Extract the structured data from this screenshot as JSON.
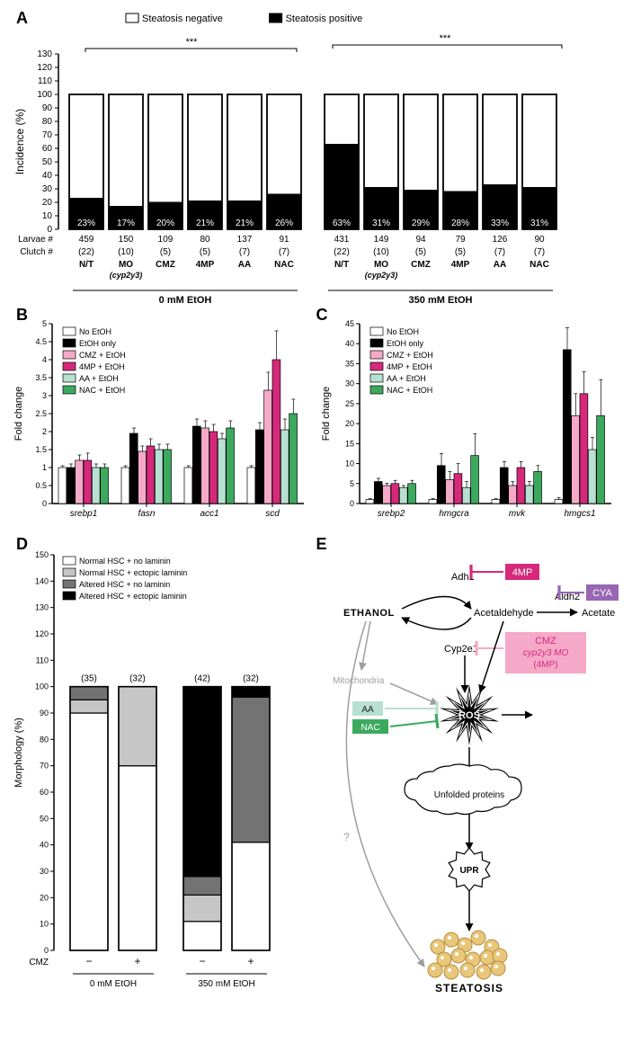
{
  "panelA": {
    "label": "A",
    "type": "stacked-bar",
    "ylabel": "Incidence (%)",
    "ylim": [
      0,
      130
    ],
    "ytick_step": 10,
    "legend": [
      {
        "label": "Steatosis negative",
        "fill": "#ffffff"
      },
      {
        "label": "Steatosis positive",
        "fill": "#000000"
      }
    ],
    "sig_label": "***",
    "groups": [
      {
        "header": "0 mM EtOH",
        "bars": [
          {
            "treatment": "N/T",
            "subtext": "",
            "larvae": "459",
            "clutch": "(22)",
            "pct": 23,
            "italic": false
          },
          {
            "treatment": "MO",
            "subtext": "(cyp2y3)",
            "larvae": "150",
            "clutch": "(10)",
            "pct": 17,
            "italic": true
          },
          {
            "treatment": "CMZ",
            "larvae": "109",
            "clutch": "(5)",
            "pct": 20
          },
          {
            "treatment": "4MP",
            "larvae": "80",
            "clutch": "(5)",
            "pct": 21
          },
          {
            "treatment": "AA",
            "larvae": "137",
            "clutch": "(7)",
            "pct": 21
          },
          {
            "treatment": "NAC",
            "larvae": "91",
            "clutch": "(7)",
            "pct": 26
          }
        ]
      },
      {
        "header": "350 mM EtOH",
        "bars": [
          {
            "treatment": "N/T",
            "larvae": "431",
            "clutch": "(22)",
            "pct": 63
          },
          {
            "treatment": "MO",
            "subtext": "(cyp2y3)",
            "larvae": "149",
            "clutch": "(10)",
            "pct": 31,
            "italic": true
          },
          {
            "treatment": "CMZ",
            "larvae": "94",
            "clutch": "(5)",
            "pct": 29
          },
          {
            "treatment": "4MP",
            "larvae": "79",
            "clutch": "(5)",
            "pct": 28
          },
          {
            "treatment": "AA",
            "larvae": "126",
            "clutch": "(7)",
            "pct": 33
          },
          {
            "treatment": "NAC",
            "larvae": "90",
            "clutch": "(7)",
            "pct": 31
          }
        ]
      }
    ],
    "row_labels": [
      "Larvae #",
      "Clutch #"
    ]
  },
  "panelB": {
    "label": "B",
    "type": "grouped-bar",
    "ylabel": "Fold change",
    "ylim": [
      0,
      5
    ],
    "yticks": [
      0,
      0.5,
      1.0,
      1.5,
      2.0,
      2.5,
      3.0,
      3.5,
      4.0,
      4.5,
      5.0
    ],
    "legend": [
      {
        "label": "No EtOH",
        "fill": "#ffffff"
      },
      {
        "label": "EtOH only",
        "fill": "#000000"
      },
      {
        "label": "CMZ + EtOH",
        "fill": "#f5a9c8"
      },
      {
        "label": "4MP + EtOH",
        "fill": "#d6297b"
      },
      {
        "label": "AA + EtOH",
        "fill": "#b8e0d2"
      },
      {
        "label": "NAC + EtOH",
        "fill": "#3caa5e"
      }
    ],
    "genes": [
      "srebp1",
      "fasn",
      "acc1",
      "scd"
    ],
    "series": {
      "No EtOH": [
        1.0,
        1.0,
        1.0,
        1.0
      ],
      "EtOH only": [
        1.0,
        1.95,
        2.15,
        2.05
      ],
      "CMZ + EtOH": [
        1.2,
        1.45,
        2.1,
        3.15
      ],
      "4MP + EtOH": [
        1.2,
        1.6,
        2.0,
        4.0
      ],
      "AA + EtOH": [
        1.0,
        1.5,
        1.8,
        2.05
      ],
      "NAC + EtOH": [
        1.0,
        1.5,
        2.1,
        2.5
      ]
    },
    "errors": {
      "No EtOH": [
        0.05,
        0.05,
        0.05,
        0.05
      ],
      "EtOH only": [
        0.1,
        0.15,
        0.2,
        0.2
      ],
      "CMZ + EtOH": [
        0.15,
        0.15,
        0.2,
        0.5
      ],
      "4MP + EtOH": [
        0.2,
        0.2,
        0.2,
        0.8
      ],
      "AA + EtOH": [
        0.1,
        0.15,
        0.15,
        0.3
      ],
      "NAC + EtOH": [
        0.1,
        0.15,
        0.2,
        0.4
      ]
    }
  },
  "panelC": {
    "label": "C",
    "type": "grouped-bar",
    "ylabel": "Fold change",
    "ylim": [
      0,
      45
    ],
    "yticks": [
      0,
      5,
      10,
      15,
      20,
      25,
      30,
      35,
      40,
      45
    ],
    "genes": [
      "srebp2",
      "hmgcra",
      "mvk",
      "hmgcs1"
    ],
    "series": {
      "No EtOH": [
        1.0,
        1.0,
        1.0,
        1.0
      ],
      "EtOH only": [
        5.5,
        9.5,
        9.0,
        38.5
      ],
      "CMZ + EtOH": [
        4.5,
        6.0,
        4.5,
        22.0
      ],
      "4MP + EtOH": [
        5.0,
        7.5,
        9.0,
        27.5
      ],
      "AA + EtOH": [
        4.0,
        4.0,
        4.5,
        13.5
      ],
      "NAC + EtOH": [
        5.0,
        12.0,
        8.0,
        22.0
      ]
    },
    "errors": {
      "No EtOH": [
        0.2,
        0.2,
        0.2,
        0.5
      ],
      "EtOH only": [
        0.8,
        3.0,
        1.5,
        5.5
      ],
      "CMZ + EtOH": [
        0.6,
        2.0,
        1.0,
        5.5
      ],
      "4MP + EtOH": [
        0.8,
        2.5,
        1.5,
        5.5
      ],
      "AA + EtOH": [
        0.5,
        1.5,
        1.0,
        3.0
      ],
      "NAC + EtOH": [
        0.8,
        5.5,
        1.5,
        9.0
      ]
    }
  },
  "panelD": {
    "label": "D",
    "type": "stacked-bar",
    "ylabel": "Morphology (%)",
    "ylim": [
      0,
      150
    ],
    "ytick_step": 10,
    "legend": [
      {
        "label": "Normal HSC + no laminin",
        "fill": "#ffffff"
      },
      {
        "label": "Normal HSC + ectopic laminin",
        "fill": "#c6c6c6"
      },
      {
        "label": "Altered HSC + no laminin",
        "fill": "#737373"
      },
      {
        "label": "Altered HSC + ectopic laminin",
        "fill": "#000000"
      }
    ],
    "xrow_label": "CMZ",
    "groups": [
      {
        "header": "0 mM EtOH",
        "bars": [
          {
            "cmz": "−",
            "n": "(35)",
            "stacks": [
              90,
              5,
              5,
              0
            ]
          },
          {
            "cmz": "+",
            "n": "(32)",
            "stacks": [
              70,
              30,
              0,
              0
            ]
          }
        ]
      },
      {
        "header": "350 mM EtOH",
        "bars": [
          {
            "cmz": "−",
            "n": "(42)",
            "stacks": [
              11,
              10,
              7,
              72
            ]
          },
          {
            "cmz": "+",
            "n": "(32)",
            "stacks": [
              41,
              0,
              55,
              4
            ]
          }
        ]
      }
    ]
  },
  "panelE": {
    "label": "E",
    "nodes": {
      "ethanol": "ETHANOL",
      "adh1": "Adh1",
      "acet": "Acetaldehyde",
      "aldh2": "Aldh2",
      "acetate": "Acetate",
      "cyp2e1": "Cyp2e1",
      "mito": "Mitochondria",
      "ros": "ROS",
      "unfolded": "Unfolded proteins",
      "upr": "UPR",
      "steatosis": "STEATOSIS",
      "mark": "?"
    },
    "drugs": {
      "fourmp": {
        "label": "4MP",
        "fill": "#d6297b"
      },
      "cya": {
        "label": "CYA",
        "fill": "#9966b3"
      },
      "cmz": {
        "label": "CMZ",
        "sub1": "cyp2y3 MO",
        "sub2": "(4MP)",
        "fill": "#f5a9c8",
        "text": "#d6297b"
      },
      "aa": {
        "label": "AA",
        "fill": "#b8e0d2"
      },
      "nac": {
        "label": "NAC",
        "fill": "#3caa5e"
      }
    }
  },
  "colors": {
    "black": "#000000",
    "white": "#ffffff",
    "gray": "#9e9e9e"
  }
}
